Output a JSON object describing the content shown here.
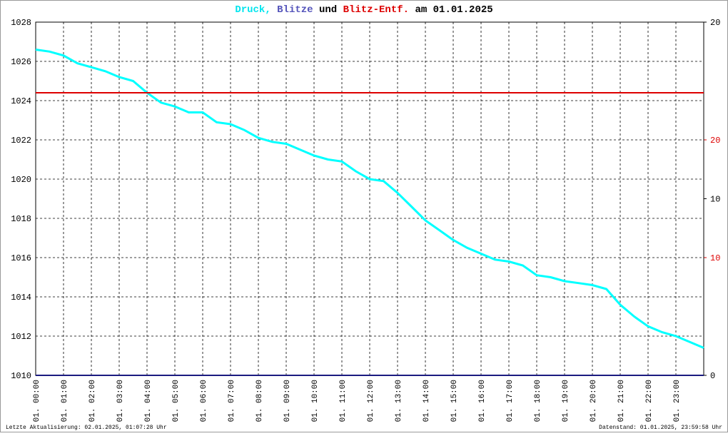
{
  "chart_data": {
    "type": "line",
    "title_parts": [
      {
        "text": "Druck,",
        "color": "#00e5ee"
      },
      {
        "text": "Blitze",
        "color": "#5555bb"
      },
      {
        "text": "und",
        "color": "#000000"
      },
      {
        "text": "Blitz-Entf.",
        "color": "#dd0000"
      },
      {
        "text": "am 01.01.2025",
        "color": "#000000"
      }
    ],
    "xlim": [
      0,
      24
    ],
    "xticks": [
      {
        "value": 0,
        "label": "01. 00:00"
      },
      {
        "value": 1,
        "label": "01. 01:00"
      },
      {
        "value": 2,
        "label": "01. 02:00"
      },
      {
        "value": 3,
        "label": "01. 03:00"
      },
      {
        "value": 4,
        "label": "01. 04:00"
      },
      {
        "value": 5,
        "label": "01. 05:00"
      },
      {
        "value": 6,
        "label": "01. 06:00"
      },
      {
        "value": 7,
        "label": "01. 07:00"
      },
      {
        "value": 8,
        "label": "01. 08:00"
      },
      {
        "value": 9,
        "label": "01. 09:00"
      },
      {
        "value": 10,
        "label": "01. 10:00"
      },
      {
        "value": 11,
        "label": "01. 11:00"
      },
      {
        "value": 12,
        "label": "01. 12:00"
      },
      {
        "value": 13,
        "label": "01. 13:00"
      },
      {
        "value": 14,
        "label": "01. 14:00"
      },
      {
        "value": 15,
        "label": "01. 15:00"
      },
      {
        "value": 16,
        "label": "01. 16:00"
      },
      {
        "value": 17,
        "label": "01. 17:00"
      },
      {
        "value": 18,
        "label": "01. 18:00"
      },
      {
        "value": 19,
        "label": "01. 19:00"
      },
      {
        "value": 20,
        "label": "01. 20:00"
      },
      {
        "value": 21,
        "label": "01. 21:00"
      },
      {
        "value": 22,
        "label": "01. 22:00"
      },
      {
        "value": 23,
        "label": "01. 23:00"
      }
    ],
    "ylim": [
      1010,
      1028
    ],
    "yticks": [
      1010,
      1012,
      1014,
      1016,
      1018,
      1020,
      1022,
      1024,
      1026,
      1028
    ],
    "y2lim": [
      0,
      20
    ],
    "y2ticks": [
      0,
      10,
      20
    ],
    "y3lim": [
      0,
      30
    ],
    "y3ticks": [
      10,
      20
    ],
    "y3color": "#dd0000",
    "grid": true,
    "series": [
      {
        "color": "#00ffff",
        "axis": "y",
        "x": [
          0,
          0.5,
          1,
          1.5,
          2,
          2.5,
          3,
          3.5,
          4,
          4.5,
          5,
          5.5,
          6,
          6.5,
          7,
          7.5,
          8,
          8.5,
          9,
          9.5,
          10,
          10.5,
          11,
          11.5,
          12,
          12.5,
          13,
          13.5,
          14,
          14.5,
          15,
          15.5,
          16,
          16.5,
          17,
          17.5,
          18,
          18.5,
          19,
          19.5,
          20,
          20.5,
          21,
          21.5,
          22,
          22.5,
          23,
          23.5,
          24
        ],
        "values": [
          1026.6,
          1026.5,
          1026.3,
          1025.9,
          1025.7,
          1025.5,
          1025.2,
          1025.0,
          1024.4,
          1023.9,
          1023.7,
          1023.4,
          1023.4,
          1022.9,
          1022.8,
          1022.5,
          1022.1,
          1021.9,
          1021.8,
          1021.5,
          1021.2,
          1021.0,
          1020.9,
          1020.4,
          1020.0,
          1019.9,
          1019.3,
          1018.6,
          1017.9,
          1017.4,
          1016.9,
          1016.5,
          1016.2,
          1015.9,
          1015.8,
          1015.6,
          1015.1,
          1015.0,
          1014.8,
          1014.7,
          1014.6,
          1014.4,
          1013.6,
          1013.0,
          1012.5,
          1012.2,
          1012.0,
          1011.7,
          1011.4
        ]
      },
      {
        "color": "#dd0000",
        "axis": "y3",
        "x": [
          0,
          24
        ],
        "values": [
          24,
          24
        ]
      },
      {
        "color": "#1a1a80",
        "axis": "y2",
        "x": [
          0,
          24
        ],
        "values": [
          0,
          0
        ]
      }
    ],
    "annotations": [
      "Letzte Aktualisierung: 02.01.2025, 01:07:28 Uhr",
      "Datenstand: 01.01.2025, 23:59:58 Uhr"
    ]
  }
}
